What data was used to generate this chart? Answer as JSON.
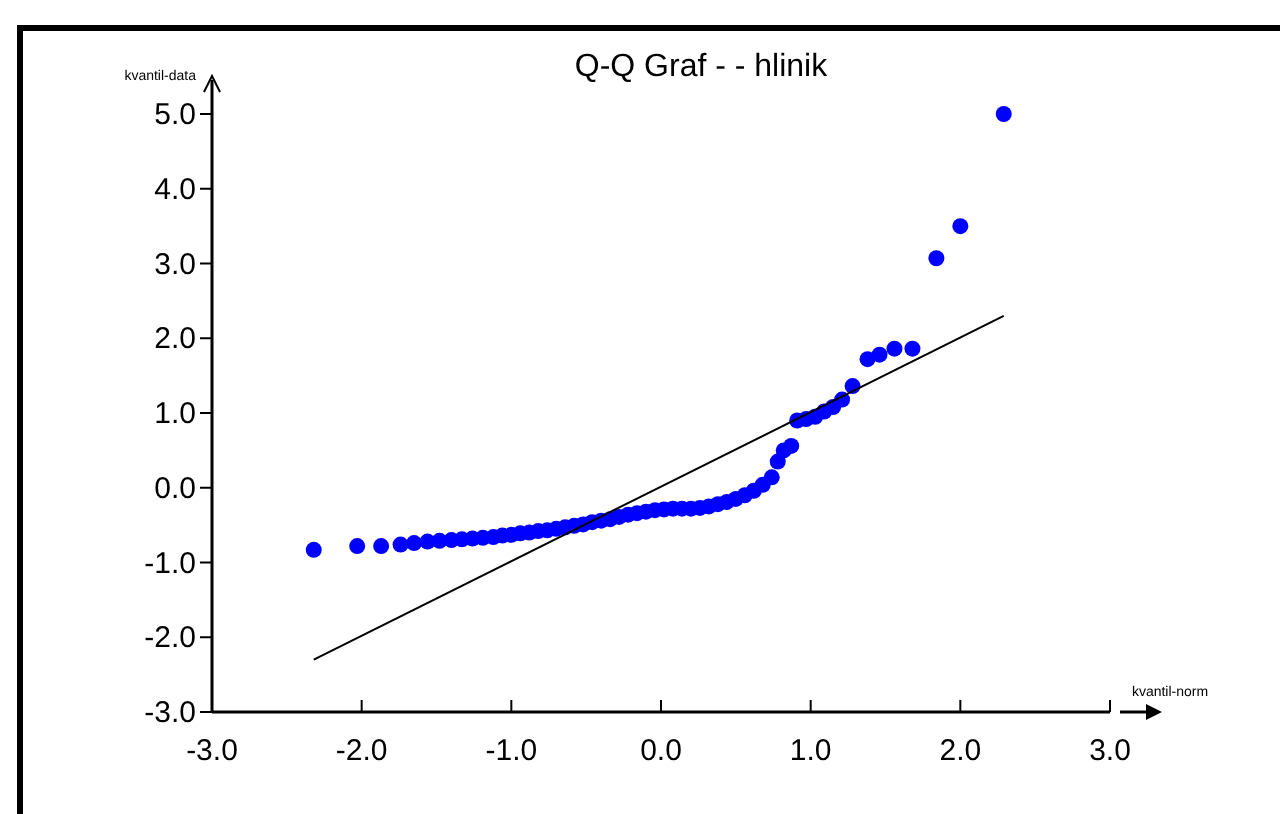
{
  "chart_data": {
    "type": "scatter",
    "title": "Q-Q Graf -  - hlinik",
    "xlabel": "kvantil-norm",
    "ylabel": "kvantil-data",
    "xlim": [
      -3,
      3
    ],
    "ylim": [
      -3,
      5
    ],
    "xticks": [
      {
        "value": -3,
        "label": "-3.0"
      },
      {
        "value": -2,
        "label": "-2.0"
      },
      {
        "value": -1,
        "label": "-1.0"
      },
      {
        "value": 0,
        "label": "0.0"
      },
      {
        "value": 1,
        "label": "1.0"
      },
      {
        "value": 2,
        "label": "2.0"
      },
      {
        "value": 3,
        "label": "3.0"
      }
    ],
    "yticks": [
      {
        "value": -3,
        "label": "-3.0"
      },
      {
        "value": -2,
        "label": "-2.0"
      },
      {
        "value": -1,
        "label": "-1.0"
      },
      {
        "value": 0,
        "label": "0.0"
      },
      {
        "value": 1,
        "label": "1.0"
      },
      {
        "value": 2,
        "label": "2.0"
      },
      {
        "value": 3,
        "label": "3.0"
      },
      {
        "value": 4,
        "label": "4.0"
      },
      {
        "value": 5,
        "label": "5.0"
      }
    ],
    "grid": false,
    "marker": "circle",
    "series": [
      {
        "color": "#0000ff",
        "x": [
          -2.32,
          -2.03,
          -1.87,
          -1.74,
          -1.65,
          -1.56,
          -1.48,
          -1.4,
          -1.33,
          -1.26,
          -1.19,
          -1.12,
          -1.06,
          -1.0,
          -0.94,
          -0.88,
          -0.82,
          -0.76,
          -0.7,
          -0.64,
          -0.58,
          -0.52,
          -0.46,
          -0.4,
          -0.34,
          -0.28,
          -0.22,
          -0.16,
          -0.1,
          -0.04,
          0.02,
          0.08,
          0.14,
          0.2,
          0.26,
          0.32,
          0.38,
          0.44,
          0.5,
          0.56,
          0.62,
          0.68,
          0.74,
          0.78,
          0.82,
          0.87,
          0.91,
          0.97,
          1.03,
          1.09,
          1.15,
          1.21,
          1.28,
          1.38,
          1.46,
          1.56,
          1.68,
          1.84,
          2.0,
          2.29
        ],
        "values": [
          -0.83,
          -0.78,
          -0.78,
          -0.76,
          -0.74,
          -0.72,
          -0.71,
          -0.7,
          -0.69,
          -0.68,
          -0.67,
          -0.66,
          -0.64,
          -0.63,
          -0.61,
          -0.6,
          -0.58,
          -0.57,
          -0.55,
          -0.53,
          -0.51,
          -0.49,
          -0.46,
          -0.44,
          -0.42,
          -0.39,
          -0.36,
          -0.34,
          -0.32,
          -0.3,
          -0.29,
          -0.28,
          -0.28,
          -0.28,
          -0.27,
          -0.25,
          -0.22,
          -0.19,
          -0.15,
          -0.1,
          -0.04,
          0.04,
          0.14,
          0.35,
          0.5,
          0.56,
          0.9,
          0.92,
          0.95,
          1.02,
          1.08,
          1.18,
          1.36,
          1.72,
          1.78,
          1.86,
          1.86,
          3.07,
          3.5,
          5.0
        ]
      },
      {
        "type": "line",
        "color": "#000000",
        "marker": "none",
        "x": [
          -2.32,
          2.29
        ],
        "values": [
          -2.3,
          2.3
        ]
      }
    ]
  }
}
